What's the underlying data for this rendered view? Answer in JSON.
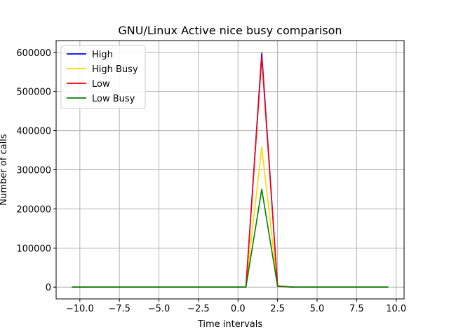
{
  "chart_data": {
    "type": "line",
    "title": "GNU/Linux Active nice busy comparison",
    "xlabel": "Time intervals",
    "ylabel": "Number of calls",
    "xlim": [
      -11.5,
      10.5
    ],
    "ylim": [
      -30000,
      630000
    ],
    "xticks": [
      -10.0,
      -7.5,
      -5.0,
      -2.5,
      0.0,
      2.5,
      5.0,
      7.5,
      10.0
    ],
    "xtick_labels": [
      "−10.0",
      "−7.5",
      "−5.0",
      "−2.5",
      "0.0",
      "2.5",
      "5.0",
      "7.5",
      "10.0"
    ],
    "yticks": [
      0,
      100000,
      200000,
      300000,
      400000,
      500000,
      600000
    ],
    "ytick_labels": [
      "0",
      "100000",
      "200000",
      "300000",
      "400000",
      "500000",
      "600000"
    ],
    "grid": true,
    "legend_position": "top-left",
    "x": [
      -10.5,
      -9.5,
      -8.5,
      -7.5,
      -6.5,
      -5.5,
      -4.5,
      -3.5,
      -2.5,
      -1.5,
      -0.5,
      0.5,
      1.5,
      2.5,
      3.5,
      4.5,
      5.5,
      6.5,
      7.5,
      8.5,
      9.5
    ],
    "series": [
      {
        "name": "High",
        "color": "#0000ff",
        "values": [
          0,
          0,
          0,
          0,
          0,
          0,
          0,
          0,
          0,
          0,
          0,
          0,
          598000,
          3000,
          0,
          0,
          0,
          0,
          0,
          0,
          0
        ]
      },
      {
        "name": "High Busy",
        "color": "#ffd700",
        "values": [
          0,
          0,
          0,
          0,
          0,
          0,
          0,
          0,
          0,
          0,
          0,
          0,
          358000,
          3000,
          0,
          0,
          0,
          0,
          0,
          0,
          0
        ]
      },
      {
        "name": "Low",
        "color": "#ff0000",
        "values": [
          0,
          0,
          0,
          0,
          0,
          0,
          0,
          0,
          0,
          0,
          0,
          0,
          588000,
          2000,
          0,
          0,
          0,
          0,
          0,
          0,
          0
        ]
      },
      {
        "name": "Low Busy",
        "color": "#008000",
        "values": [
          0,
          0,
          0,
          0,
          0,
          0,
          0,
          0,
          0,
          0,
          0,
          0,
          250000,
          3000,
          0,
          0,
          0,
          0,
          0,
          0,
          0
        ]
      }
    ]
  }
}
